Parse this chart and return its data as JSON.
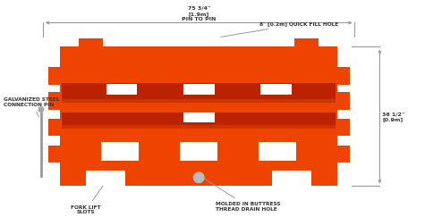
{
  "bg_color": "#ffffff",
  "orange": "#EE4400",
  "dark_orange": "#BB2200",
  "mid_orange": "#DD3300",
  "shadow_orange": "#CC3300",
  "gray": "#888888",
  "text_color": "#333333",
  "dim_line_color": "#999999",
  "annotations": {
    "top_dim": "75 3/4\"\n[1.9m]\nPIN TO PIN",
    "fill_hole": "8\" [0.2m] QUICK FILL HOLE",
    "connection_pin": "GALVANIZED STEEL\nCONNECTION PIN",
    "fork_lift": "FORK LIFT\nSLOTS",
    "drain_hole": "MOLDED IN BUTTRESS\nTHREAD DRAIN HOLE",
    "right_dim": "36 1/2\"\n[0.9m]"
  }
}
